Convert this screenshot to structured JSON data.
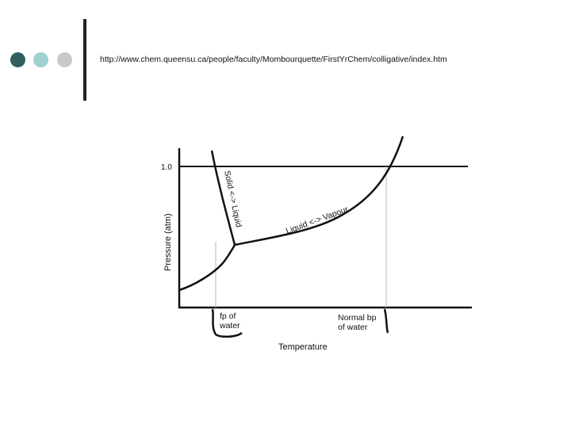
{
  "header": {
    "source_url": "http://www.chem.queensu.ca/people/faculty/Mombourquette/FirstYrChem/colligative/index.htm",
    "dot_colors": [
      "#2f5f5e",
      "#9fcfcf",
      "#c8c8c8"
    ],
    "divider_color": "#222222"
  },
  "diagram": {
    "y_axis_label": "Pressure (atm)",
    "x_axis_label": "Temperature",
    "tick_label": "1.0",
    "curve_labels": {
      "solid_liquid": "Solid <-> Liquid",
      "liquid_vapour": "Liquid <-> Vapour"
    },
    "marker_labels": {
      "freezing_point_line1": "fp of",
      "freezing_point_line2": "water",
      "boiling_point_line1": "Normal bp",
      "boiling_point_line2": "of water"
    }
  }
}
